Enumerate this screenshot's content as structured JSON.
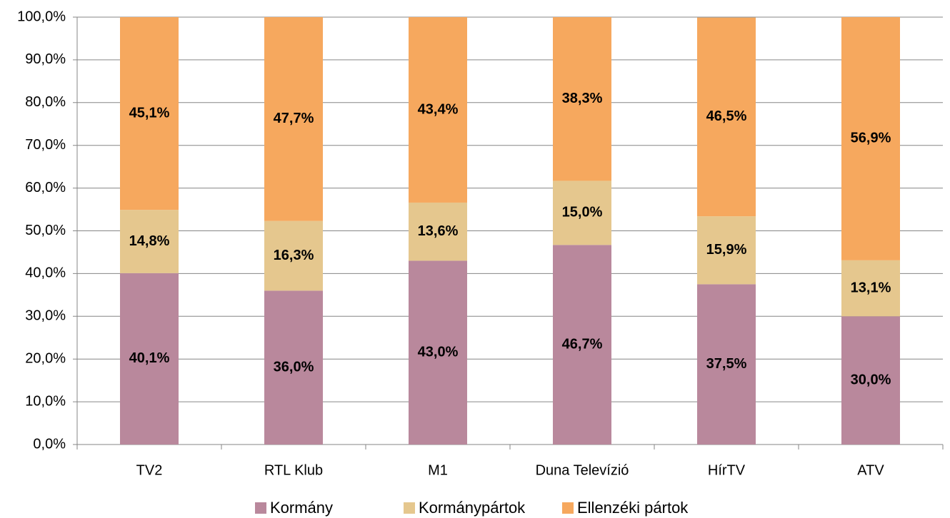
{
  "chart_data": {
    "type": "stacked_bar",
    "categories": [
      "TV2",
      "RTL Klub",
      "M1",
      "Duna Televízió",
      "HírTV",
      "ATV"
    ],
    "series": [
      {
        "name": "Kormány",
        "color": "#b9889c",
        "values": [
          40.1,
          36.0,
          43.0,
          46.7,
          37.5,
          30.0
        ],
        "value_labels": [
          "40,1%",
          "36,0%",
          "43,0%",
          "46,7%",
          "37,5%",
          "30,0%"
        ]
      },
      {
        "name": "Kormánypártok",
        "color": "#e5c78e",
        "values": [
          14.8,
          16.3,
          13.6,
          15.0,
          15.9,
          13.1
        ],
        "value_labels": [
          "14,8%",
          "16,3%",
          "13,6%",
          "15,0%",
          "15,9%",
          "13,1%"
        ]
      },
      {
        "name": "Ellenzéki pártok",
        "color": "#f6a85e",
        "values": [
          45.1,
          47.7,
          43.4,
          38.3,
          46.5,
          56.9
        ],
        "value_labels": [
          "45,1%",
          "47,7%",
          "43,4%",
          "38,3%",
          "46,5%",
          "56,9%"
        ]
      }
    ],
    "ylim": [
      0,
      100
    ],
    "yticks": [
      {
        "value": 0,
        "label": "0,0%"
      },
      {
        "value": 10,
        "label": "10,0%"
      },
      {
        "value": 20,
        "label": "20,0%"
      },
      {
        "value": 30,
        "label": "30,0%"
      },
      {
        "value": 40,
        "label": "40,0%"
      },
      {
        "value": 50,
        "label": "50,0%"
      },
      {
        "value": 60,
        "label": "60,0%"
      },
      {
        "value": 70,
        "label": "70,0%"
      },
      {
        "value": 80,
        "label": "80,0%"
      },
      {
        "value": 90,
        "label": "90,0%"
      },
      {
        "value": 100,
        "label": "100,0%"
      }
    ],
    "grid": true,
    "legend": "bottom"
  }
}
